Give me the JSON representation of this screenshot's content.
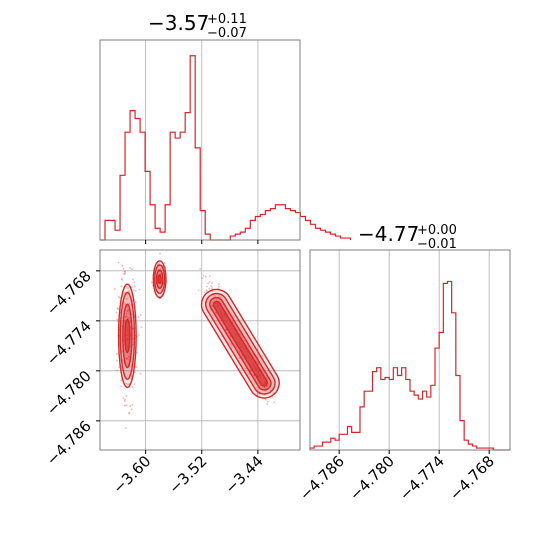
{
  "colors": {
    "series": "#d62728",
    "frame": "#7f7f7f",
    "grid": "#b0b0b0",
    "text": "#000000"
  },
  "chart_data": [
    {
      "type": "histogram",
      "panel": "x-marginal",
      "title": {
        "median": "−3.57",
        "plus": "+0.11",
        "minus": "−0.07"
      },
      "xlim": [
        -3.665,
        -3.38
      ],
      "ylim": [
        0,
        1
      ],
      "x_ticks": [
        -3.6,
        -3.52,
        -3.44
      ],
      "bins": {
        "start": -3.665,
        "width": 0.00714,
        "counts": [
          0.0,
          0.1,
          0.1,
          0.05,
          0.33,
          0.55,
          0.66,
          0.62,
          0.55,
          0.35,
          0.18,
          0.06,
          0.04,
          0.18,
          0.55,
          0.52,
          0.55,
          0.65,
          0.94,
          0.47,
          0.15,
          0.03,
          0.0,
          0.0,
          0.0,
          0.0,
          0.02,
          0.03,
          0.04,
          0.06,
          0.1,
          0.12,
          0.13,
          0.15,
          0.16,
          0.18,
          0.18,
          0.16,
          0.15,
          0.14,
          0.12,
          0.1,
          0.08,
          0.06,
          0.05,
          0.04,
          0.03,
          0.02,
          0.01,
          0.01
        ]
      }
    },
    {
      "type": "histogram",
      "panel": "y-marginal",
      "title": {
        "median": "−4.77",
        "plus": "+0.00",
        "minus": "−0.01"
      },
      "xlim": [
        -4.7895,
        -4.7655
      ],
      "ylim": [
        0,
        1
      ],
      "x_ticks": [
        -4.786,
        -4.78,
        -4.774,
        -4.768
      ],
      "tick_labels": [
        "−4.786",
        "−4.780",
        "−4.774",
        "−4.768"
      ],
      "bins": {
        "start": -4.7895,
        "width": 0.0005,
        "counts": [
          0.01,
          0.02,
          0.02,
          0.04,
          0.04,
          0.06,
          0.05,
          0.08,
          0.08,
          0.12,
          0.09,
          0.09,
          0.22,
          0.3,
          0.3,
          0.4,
          0.42,
          0.36,
          0.37,
          0.36,
          0.42,
          0.38,
          0.42,
          0.36,
          0.3,
          0.28,
          0.26,
          0.3,
          0.27,
          0.33,
          0.52,
          0.6,
          0.85,
          0.86,
          0.7,
          0.38,
          0.15,
          0.05,
          0.03,
          0.02,
          0.01,
          0.01,
          0.01,
          0.01,
          0.0,
          0.0,
          0.0,
          0.0
        ]
      }
    },
    {
      "type": "scatter-contour",
      "panel": "joint",
      "xlim": [
        -3.665,
        -3.38
      ],
      "ylim": [
        -4.7895,
        -4.7655
      ],
      "x_ticks": [
        -3.6,
        -3.52,
        -3.44
      ],
      "x_tick_labels": [
        "−3.60",
        "−3.52",
        "−3.44"
      ],
      "y_ticks": [
        -4.768,
        -4.774,
        -4.78,
        -4.786
      ],
      "y_tick_labels": [
        "−4.768",
        "−4.774",
        "−4.780",
        "−4.786"
      ],
      "modes": [
        {
          "name": "left",
          "cx": -3.626,
          "cy": -4.7758,
          "contours": [
            {
              "level": 1,
              "rx": 0.0125,
              "ry": 0.0062,
              "rot": 0
            },
            {
              "level": 2,
              "rx": 0.01,
              "ry": 0.0052,
              "rot": 0
            },
            {
              "level": 3,
              "rx": 0.0065,
              "ry": 0.0038,
              "rot": 0
            },
            {
              "level": 4,
              "rx": 0.0035,
              "ry": 0.002,
              "rot": 0
            }
          ]
        },
        {
          "name": "middle",
          "cx": -3.58,
          "cy": -4.769,
          "contours": [
            {
              "level": 1,
              "rx": 0.009,
              "ry": 0.0022,
              "rot": 0
            },
            {
              "level": 2,
              "rx": 0.007,
              "ry": 0.0017,
              "rot": 0
            },
            {
              "level": 3,
              "rx": 0.0045,
              "ry": 0.0011,
              "rot": 0
            },
            {
              "level": 4,
              "rx": 0.002,
              "ry": 0.0005,
              "rot": 0
            }
          ]
        },
        {
          "name": "diagonal",
          "x0": -3.51,
          "y0": -4.7705,
          "x1": -3.42,
          "y1": -4.783,
          "contours": [
            {
              "level": 1,
              "w": 0.0018
            },
            {
              "level": 2,
              "w": 0.0013
            },
            {
              "level": 3,
              "w": 0.0008
            },
            {
              "level": 4,
              "w": 0.0004
            }
          ]
        }
      ]
    }
  ]
}
